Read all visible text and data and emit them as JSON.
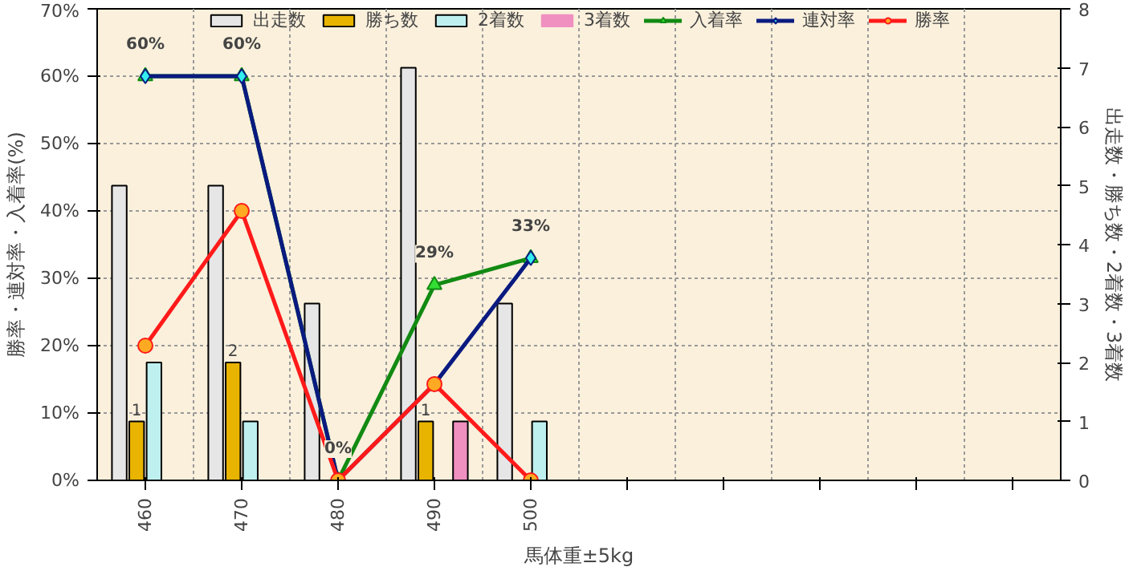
{
  "chart_data": {
    "type": "bar",
    "xlabel": "馬体重±5kg",
    "ylabel": "勝率・連対率・入着率(%)",
    "y2label": "出走数・勝ち数・2着数・3着数",
    "categories": [
      "460",
      "470",
      "480",
      "490",
      "500",
      null,
      null,
      null,
      null,
      null
    ],
    "series": [
      {
        "name": "出走数",
        "axis": "y2",
        "color": "#e6e6e6",
        "values": [
          5,
          5,
          3,
          7,
          3,
          null,
          null,
          null,
          null,
          null
        ]
      },
      {
        "name": "勝ち数",
        "axis": "y2",
        "color": "#e8b400",
        "values": [
          1,
          2,
          0,
          1,
          0,
          null,
          null,
          null,
          null,
          null
        ],
        "value_labels": [
          "1",
          "2",
          null,
          "1",
          null,
          null,
          null,
          null,
          null,
          null
        ]
      },
      {
        "name": "2着数",
        "axis": "y2",
        "color": "#bff0f0",
        "values": [
          2,
          1,
          0,
          0,
          1,
          null,
          null,
          null,
          null,
          null
        ]
      },
      {
        "name": "3着数",
        "axis": "y2",
        "color": "#f090c0",
        "values": [
          0,
          0,
          0,
          1,
          0,
          null,
          null,
          null,
          null,
          null
        ]
      },
      {
        "name": "入着率",
        "type": "line",
        "color": "#128a12",
        "marker": "triangle",
        "values": [
          60,
          60,
          0,
          29,
          33,
          null,
          null,
          null,
          null,
          null
        ],
        "value_labels": [
          "60%",
          "60%",
          "0%",
          "29%",
          "33%",
          null,
          null,
          null,
          null,
          null
        ]
      },
      {
        "name": "連対率",
        "type": "line",
        "color": "#0a1a80",
        "marker": "diamond",
        "values": [
          60,
          60,
          0,
          14.3,
          33,
          null,
          null,
          null,
          null,
          null
        ]
      },
      {
        "name": "勝率",
        "type": "line",
        "color": "#ff1a1a",
        "marker": "circle",
        "values": [
          20,
          40,
          0,
          14.3,
          0,
          null,
          null,
          null,
          null,
          null
        ]
      }
    ],
    "ylim": [
      0,
      70
    ],
    "yticks": [
      {
        "value": 0,
        "label": "0%"
      },
      {
        "value": 10,
        "label": "10%"
      },
      {
        "value": 20,
        "label": "20%"
      },
      {
        "value": 30,
        "label": "30%"
      },
      {
        "value": 40,
        "label": "40%"
      },
      {
        "value": 50,
        "label": "50%"
      },
      {
        "value": 60,
        "label": "60%"
      },
      {
        "value": 70,
        "label": "70%"
      }
    ],
    "y2lim": [
      0,
      8
    ],
    "y2ticks": [
      0,
      1,
      2,
      3,
      4,
      5,
      6,
      7,
      8
    ],
    "grid": true,
    "legend": "top"
  }
}
